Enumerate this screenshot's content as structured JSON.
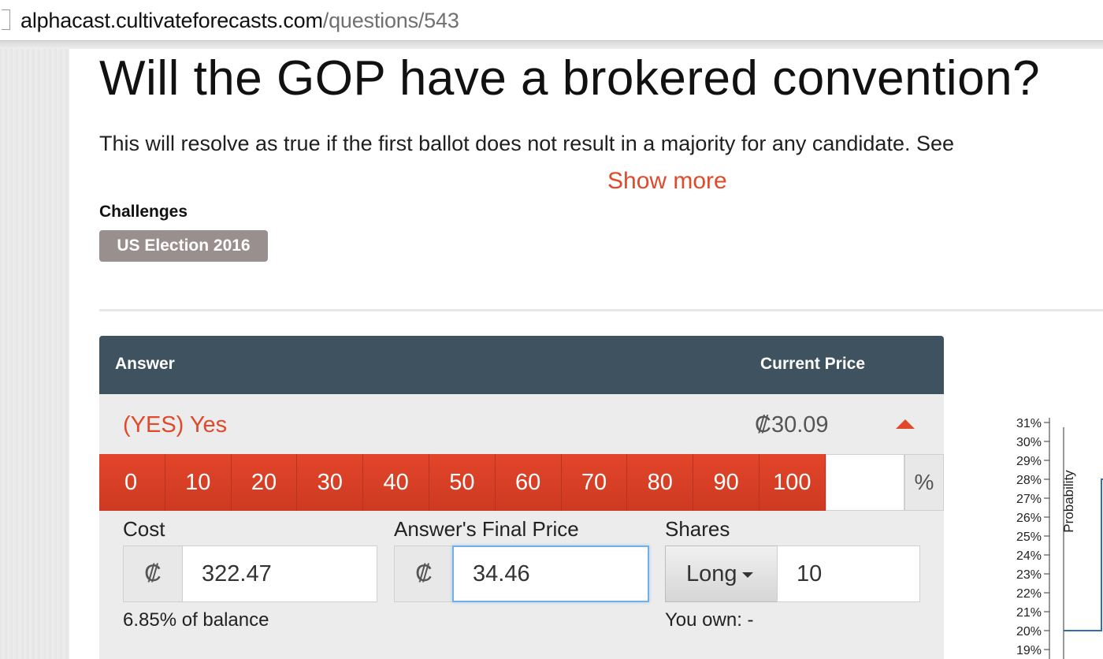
{
  "browser": {
    "url_host": "alphacast.cultivateforecasts.com",
    "url_path": "/questions/543"
  },
  "question": {
    "title": "Will the GOP have a brokered convention?",
    "description": "This will resolve as true if the first ballot does not result in a majority for any candidate. See",
    "show_more": "Show more"
  },
  "challenges": {
    "label": "Challenges",
    "tags": [
      "US Election 2016"
    ]
  },
  "table": {
    "header_answer": "Answer",
    "header_price": "Current Price",
    "answer_label": "(YES) Yes",
    "answer_price": "₡30.09"
  },
  "probability_buttons": [
    "0",
    "10",
    "20",
    "30",
    "40",
    "50",
    "60",
    "70",
    "80",
    "90",
    "100"
  ],
  "probability_input": {
    "value": "",
    "suffix": "%"
  },
  "trade": {
    "cost_label": "Cost",
    "currency_symbol": "₡",
    "cost_value": "322.47",
    "final_price_label": "Answer's Final Price",
    "final_price_value": "34.46",
    "shares_label": "Shares",
    "direction": "Long",
    "shares_value": "10",
    "balance_note": "6.85% of balance",
    "own_note": "You own: -"
  },
  "colors": {
    "accent": "#e0492a",
    "header": "#3e5260",
    "tag": "#9a8f8f",
    "chart_line": "#2f6fb0"
  },
  "chart_data": {
    "type": "line",
    "ylabel": "Probability",
    "yticks": [
      "31%",
      "30%",
      "29%",
      "28%",
      "27%",
      "26%",
      "25%",
      "24%",
      "23%",
      "22%",
      "21%",
      "20%",
      "19%"
    ],
    "ylim": [
      19,
      31
    ],
    "series": [
      {
        "values": [
          20,
          20,
          28
        ]
      }
    ]
  }
}
